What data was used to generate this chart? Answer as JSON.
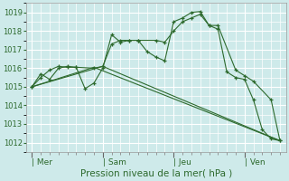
{
  "background_color": "#ceeaea",
  "grid_color": "#ffffff",
  "line_color": "#2d6a2d",
  "title": "Pression niveau de la mer( hPa )",
  "ylim": [
    1011.5,
    1019.5
  ],
  "yticks": [
    1012,
    1013,
    1014,
    1015,
    1016,
    1017,
    1018,
    1019
  ],
  "xtick_labels": [
    "| Mer",
    "| Sam",
    "| Jeu",
    "| Ven"
  ],
  "xtick_positions": [
    0,
    24,
    48,
    72
  ],
  "xlim": [
    -2,
    86
  ],
  "series": [
    {
      "x": [
        0,
        3,
        6,
        9,
        12,
        15,
        18,
        21,
        24,
        27,
        30,
        33,
        36,
        39,
        42,
        45,
        48,
        51,
        54,
        57,
        60,
        63,
        66,
        69,
        72,
        75,
        78,
        81,
        84
      ],
      "y": [
        1015.0,
        1015.7,
        1015.4,
        1016.0,
        1016.1,
        1016.05,
        1014.9,
        1015.2,
        1016.0,
        1017.8,
        1017.4,
        1017.5,
        1017.5,
        1016.9,
        1016.6,
        1016.4,
        1018.5,
        1018.7,
        1019.0,
        1019.05,
        1018.3,
        1018.1,
        1015.8,
        1015.5,
        1015.4,
        1014.3,
        1012.7,
        1012.2,
        1012.1
      ],
      "marker": true
    },
    {
      "x": [
        0,
        3,
        6,
        9,
        12,
        15,
        21,
        24,
        27,
        30,
        33,
        36,
        42,
        45,
        48,
        51,
        54,
        57,
        60,
        63,
        69,
        72,
        75,
        81,
        84
      ],
      "y": [
        1015.0,
        1015.5,
        1015.9,
        1016.1,
        1016.05,
        1016.05,
        1016.0,
        1016.1,
        1017.3,
        1017.5,
        1017.5,
        1017.5,
        1017.5,
        1017.4,
        1018.0,
        1018.5,
        1018.7,
        1018.9,
        1018.3,
        1018.3,
        1015.9,
        1015.6,
        1015.3,
        1014.3,
        1012.1
      ],
      "marker": true
    },
    {
      "x": [
        0,
        24,
        84
      ],
      "y": [
        1015.0,
        1016.1,
        1012.1
      ],
      "marker": false
    },
    {
      "x": [
        0,
        21,
        84
      ],
      "y": [
        1015.0,
        1016.05,
        1012.1
      ],
      "marker": false
    }
  ]
}
